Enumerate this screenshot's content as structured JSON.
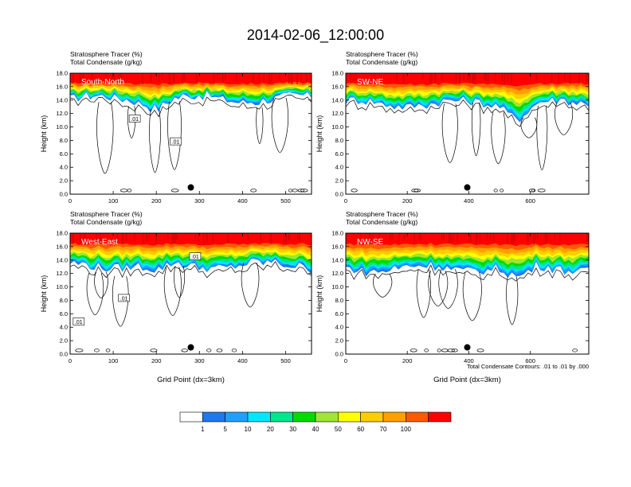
{
  "figure": {
    "title": "2014-02-06_12:00:00",
    "footnote": "Total Condensate Contours: .01 to .01 by .000"
  },
  "colorbar": {
    "levels": [
      "1",
      "5",
      "10",
      "20",
      "30",
      "40",
      "50",
      "60",
      "70",
      "100"
    ],
    "colors": [
      "#ffffff",
      "#1e78f0",
      "#1ea0ff",
      "#00e6ff",
      "#00e68c",
      "#00dc00",
      "#a0e632",
      "#ffff00",
      "#ffcd00",
      "#ffa000",
      "#ff5a00",
      "#ff0000"
    ]
  },
  "chart_data": [
    {
      "type": "heatmap",
      "panel_label": "South-North",
      "title_lines": [
        "Stratosphere Tracer   (%)",
        "Total Condensate   (g/kg)"
      ],
      "xlabel": "",
      "ylabel": "Height (km)",
      "xlim": [
        0,
        560
      ],
      "ylim": [
        0,
        18
      ],
      "xticks": [
        "0",
        "100",
        "200",
        "300",
        "400",
        "500"
      ],
      "xtick_values": [
        0,
        100,
        200,
        300,
        400,
        500
      ],
      "yticks": [
        "0.0",
        "2.0",
        "4.0",
        "6.0",
        "8.0",
        "10.0",
        "12.0",
        "14.0",
        "16.0",
        "18.0"
      ],
      "contour_labels": [
        {
          "text": ".01",
          "x": 150,
          "y": 11.2
        },
        {
          "text": ".01",
          "x": 245,
          "y": 7.8
        }
      ],
      "marker": {
        "x": 280,
        "y": 1.0
      },
      "base_km": 14.2,
      "tracer_dip": {
        "x": 200,
        "depth": 1.2
      }
    },
    {
      "type": "heatmap",
      "panel_label": "SW-NE",
      "title_lines": [
        "Stratosphere Tracer   (%)",
        "Total Condensate   (g/kg)"
      ],
      "xlabel": "",
      "ylabel": "Height (km)",
      "xlim": [
        0,
        790
      ],
      "ylim": [
        0,
        18
      ],
      "xticks": [
        "0",
        "200",
        "400",
        "600"
      ],
      "xtick_values": [
        0,
        200,
        400,
        600
      ],
      "yticks": [
        "0.0",
        "2.0",
        "4.0",
        "6.0",
        "8.0",
        "10.0",
        "12.0",
        "14.0",
        "16.0",
        "18.0"
      ],
      "contour_labels": [],
      "marker": {
        "x": 395,
        "y": 1.0
      },
      "base_km": 13.5,
      "tracer_dip": {
        "x": 560,
        "depth": 2.0
      }
    },
    {
      "type": "heatmap",
      "panel_label": "West-East",
      "title_lines": [
        "Stratosphere Tracer   (%)",
        "Total Condensate   (g/kg)"
      ],
      "xlabel": "Grid Point (dx=3km)",
      "ylabel": "Height (km)",
      "xlim": [
        0,
        560
      ],
      "ylim": [
        0,
        18
      ],
      "xticks": [
        "0",
        "100",
        "200",
        "300",
        "400",
        "500"
      ],
      "xtick_values": [
        0,
        100,
        200,
        300,
        400,
        500
      ],
      "yticks": [
        "0.0",
        "2.0",
        "4.0",
        "6.0",
        "8.0",
        "10.0",
        "12.0",
        "14.0",
        "16.0",
        "18.0"
      ],
      "contour_labels": [
        {
          "text": ".01",
          "x": 290,
          "y": 14.5
        },
        {
          "text": ".01",
          "x": 125,
          "y": 8.3
        },
        {
          "text": ".01",
          "x": 20,
          "y": 4.8
        }
      ],
      "marker": {
        "x": 280,
        "y": 1.0
      },
      "base_km": 13.2,
      "tracer_dip": {
        "x": 200,
        "depth": 1.0
      }
    },
    {
      "type": "heatmap",
      "panel_label": "NW-SE",
      "title_lines": [
        "Stratosphere Tracer   (%)",
        "Total Condensate   (g/kg)"
      ],
      "xlabel": "Grid Point (dx=3km)",
      "ylabel": "Height (km)",
      "xlim": [
        0,
        790
      ],
      "ylim": [
        0,
        18
      ],
      "xticks": [
        "0",
        "200",
        "400",
        "600"
      ],
      "xtick_values": [
        0,
        200,
        400,
        600
      ],
      "yticks": [
        "0.0",
        "2.0",
        "4.0",
        "6.0",
        "8.0",
        "10.0",
        "12.0",
        "14.0",
        "16.0",
        "18.0"
      ],
      "contour_labels": [],
      "marker": {
        "x": 395,
        "y": 1.0
      },
      "base_km": 12.8,
      "tracer_dip": {
        "x": 560,
        "depth": 1.8
      }
    }
  ]
}
